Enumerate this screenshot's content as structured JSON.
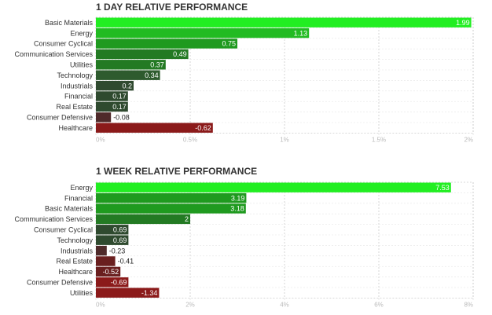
{
  "colors": {
    "pos_strong": "#22ee22",
    "pos_mid1": "#22bb22",
    "pos_mid2": "#1f9a1f",
    "pos_mid3": "#237a23",
    "pos_dark": "#2e5b2e",
    "pos_darkest": "#2f4a2f",
    "neg_small": "#4f2a2a",
    "neg_mid": "#6a1f1f",
    "neg_strong": "#8b1a1a",
    "grid": "#cccccc"
  },
  "chart_data": [
    {
      "type": "bar",
      "orientation": "horizontal",
      "title": "1 DAY RELATIVE PERFORMANCE",
      "categories": [
        "Basic Materials",
        "Energy",
        "Consumer Cyclical",
        "Communication Services",
        "Utilities",
        "Technology",
        "Industrials",
        "Financial",
        "Real Estate",
        "Consumer Defensive",
        "Healthcare"
      ],
      "values": [
        1.99,
        1.13,
        0.75,
        0.49,
        0.37,
        0.34,
        0.2,
        0.17,
        0.17,
        -0.08,
        -0.62
      ],
      "value_labels": [
        "1.99",
        "1.13",
        "0.75",
        "0.49",
        "0.37",
        "0.34",
        "0.2",
        "0.17",
        "0.17",
        "-0.08",
        "-0.62"
      ],
      "xlim": [
        0,
        2
      ],
      "xticks": [
        0,
        0.5,
        1,
        1.5,
        2
      ],
      "xtick_labels": [
        "0%",
        "0.5%",
        "1%",
        "1.5%",
        "2%"
      ],
      "grid": true
    },
    {
      "type": "bar",
      "orientation": "horizontal",
      "title": "1 WEEK RELATIVE PERFORMANCE",
      "categories": [
        "Energy",
        "Financial",
        "Basic Materials",
        "Communication Services",
        "Consumer Cyclical",
        "Technology",
        "Industrials",
        "Real Estate",
        "Healthcare",
        "Consumer Defensive",
        "Utilities"
      ],
      "values": [
        7.53,
        3.19,
        3.18,
        2,
        0.69,
        0.69,
        -0.23,
        -0.41,
        -0.52,
        -0.69,
        -1.34
      ],
      "value_labels": [
        "7.53",
        "3.19",
        "3.18",
        "2",
        "0.69",
        "0.69",
        "-0.23",
        "-0.41",
        "-0.52",
        "-0.69",
        "-1.34"
      ],
      "xlim": [
        0,
        8
      ],
      "xticks": [
        0,
        2,
        4,
        6,
        8
      ],
      "xtick_labels": [
        "0%",
        "2%",
        "4%",
        "6%",
        "8%"
      ],
      "grid": true
    }
  ]
}
